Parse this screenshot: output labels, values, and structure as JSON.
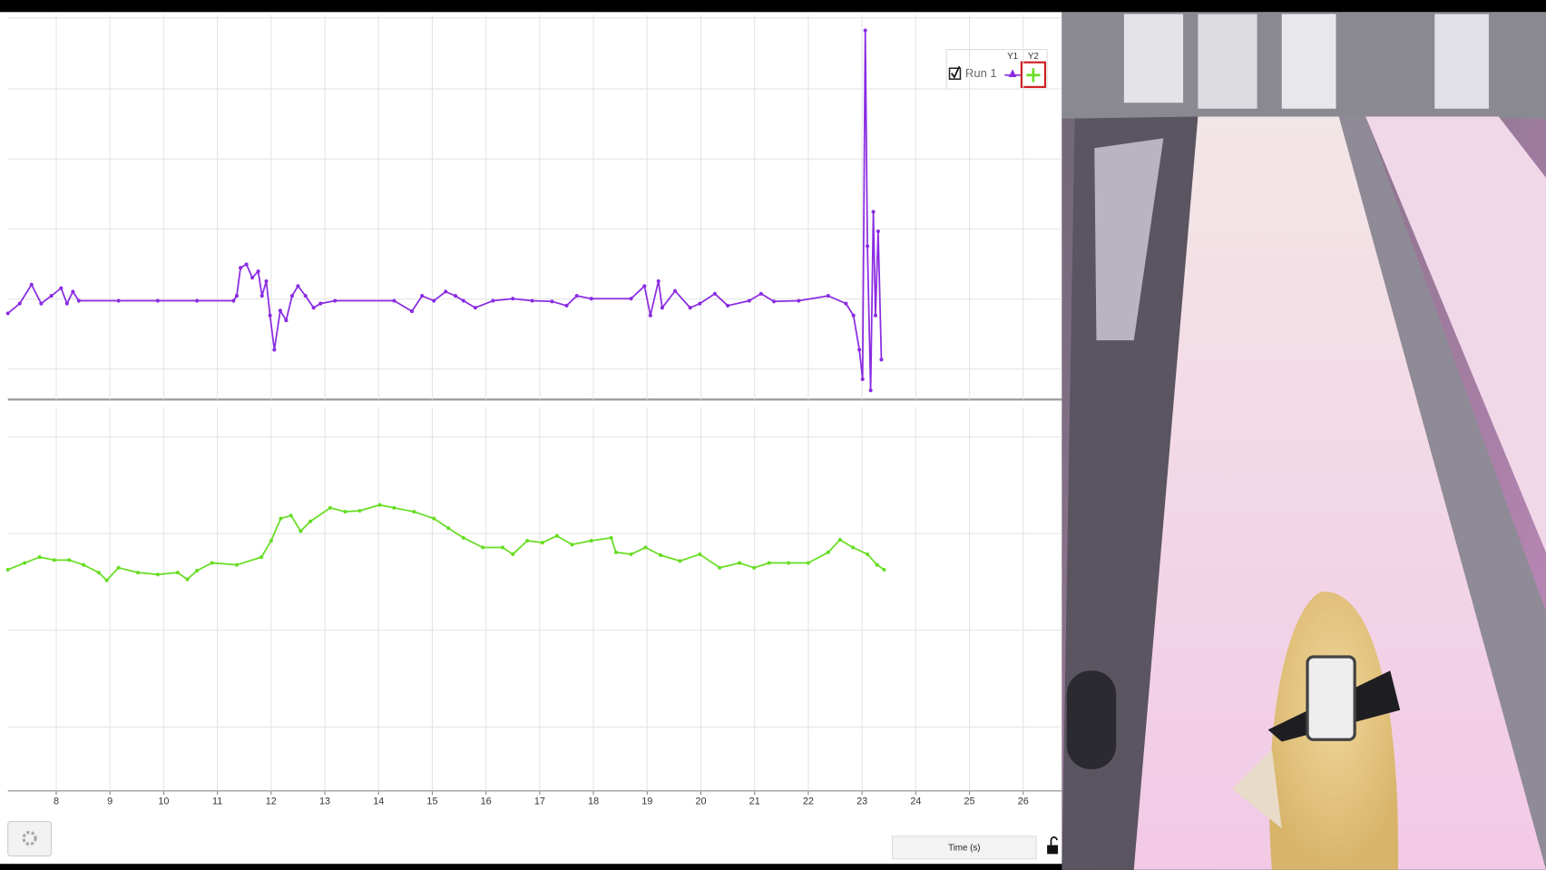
{
  "chart_data": [
    {
      "type": "line",
      "legend_columns": [
        "Y1",
        "Y2"
      ],
      "xlim": [
        7.1,
        26.72
      ],
      "ylim": [
        -0.44,
        5.05
      ],
      "grid": true,
      "series": [
        {
          "name": "Run 1",
          "color": "#8a2be2",
          "x": [
            7.1,
            7.32,
            7.54,
            7.72,
            7.91,
            8.09,
            8.2,
            8.31,
            8.42,
            9.16,
            9.89,
            10.62,
            11.3,
            11.36,
            11.43,
            11.54,
            11.65,
            11.76,
            11.83,
            11.91,
            11.98,
            12.06,
            12.17,
            12.28,
            12.39,
            12.5,
            12.64,
            12.79,
            12.92,
            13.19,
            14.29,
            14.62,
            14.81,
            15.03,
            15.25,
            15.43,
            15.58,
            15.8,
            16.13,
            16.5,
            16.86,
            17.23,
            17.5,
            17.69,
            17.96,
            18.7,
            18.95,
            19.06,
            19.21,
            19.28,
            19.52,
            19.8,
            19.98,
            20.26,
            20.5,
            20.9,
            21.12,
            21.36,
            21.82,
            22.37,
            22.7,
            22.84,
            22.95,
            23.01,
            23.06,
            23.1,
            23.16,
            23.21,
            23.25,
            23.3,
            23.36
          ],
          "values": [
            0.79,
            0.93,
            1.2,
            0.93,
            1.04,
            1.15,
            0.93,
            1.1,
            0.97,
            0.97,
            0.97,
            0.97,
            0.97,
            1.04,
            1.44,
            1.49,
            1.3,
            1.39,
            1.04,
            1.25,
            0.76,
            0.27,
            0.83,
            0.69,
            1.04,
            1.18,
            1.04,
            0.87,
            0.93,
            0.97,
            0.97,
            0.82,
            1.04,
            0.97,
            1.1,
            1.04,
            0.97,
            0.87,
            0.97,
            1.0,
            0.97,
            0.96,
            0.9,
            1.04,
            1.0,
            1.0,
            1.18,
            0.76,
            1.25,
            0.87,
            1.11,
            0.87,
            0.93,
            1.07,
            0.9,
            0.97,
            1.07,
            0.96,
            0.97,
            1.04,
            0.93,
            0.76,
            0.27,
            -0.15,
            4.83,
            1.75,
            -0.31,
            2.24,
            0.76,
            1.96,
            0.13
          ]
        }
      ]
    },
    {
      "type": "line",
      "xlabel": "Time (s)",
      "xlim": [
        7.1,
        26.72
      ],
      "ylim": [
        -0.66,
        3.31
      ],
      "grid": true,
      "xticks": [
        8,
        9,
        10,
        11,
        12,
        13,
        14,
        15,
        16,
        17,
        18,
        19,
        20,
        21,
        22,
        23,
        24,
        25,
        26
      ],
      "series": [
        {
          "color": "#66dd22",
          "x": [
            7.1,
            7.41,
            7.69,
            7.96,
            8.24,
            8.51,
            8.79,
            8.94,
            9.16,
            9.52,
            9.89,
            10.26,
            10.44,
            10.62,
            10.9,
            11.36,
            11.82,
            12.0,
            12.18,
            12.37,
            12.55,
            12.73,
            13.1,
            13.38,
            13.65,
            14.02,
            14.29,
            14.66,
            15.03,
            15.3,
            15.58,
            15.94,
            16.31,
            16.5,
            16.77,
            17.05,
            17.32,
            17.6,
            17.96,
            18.33,
            18.42,
            18.7,
            18.97,
            19.25,
            19.61,
            19.98,
            20.35,
            20.72,
            20.99,
            21.27,
            21.63,
            22.0,
            22.37,
            22.59,
            22.83,
            23.1,
            23.28,
            23.41
          ],
          "values": [
            1.63,
            1.7,
            1.76,
            1.73,
            1.73,
            1.68,
            1.6,
            1.52,
            1.65,
            1.6,
            1.58,
            1.6,
            1.53,
            1.62,
            1.7,
            1.68,
            1.76,
            1.93,
            2.16,
            2.19,
            2.03,
            2.13,
            2.27,
            2.23,
            2.24,
            2.3,
            2.27,
            2.23,
            2.16,
            2.06,
            1.96,
            1.86,
            1.86,
            1.79,
            1.93,
            1.91,
            1.98,
            1.89,
            1.93,
            1.96,
            1.81,
            1.79,
            1.86,
            1.78,
            1.72,
            1.79,
            1.65,
            1.7,
            1.65,
            1.7,
            1.7,
            1.7,
            1.81,
            1.94,
            1.86,
            1.79,
            1.68,
            1.63
          ]
        }
      ]
    }
  ]
}
